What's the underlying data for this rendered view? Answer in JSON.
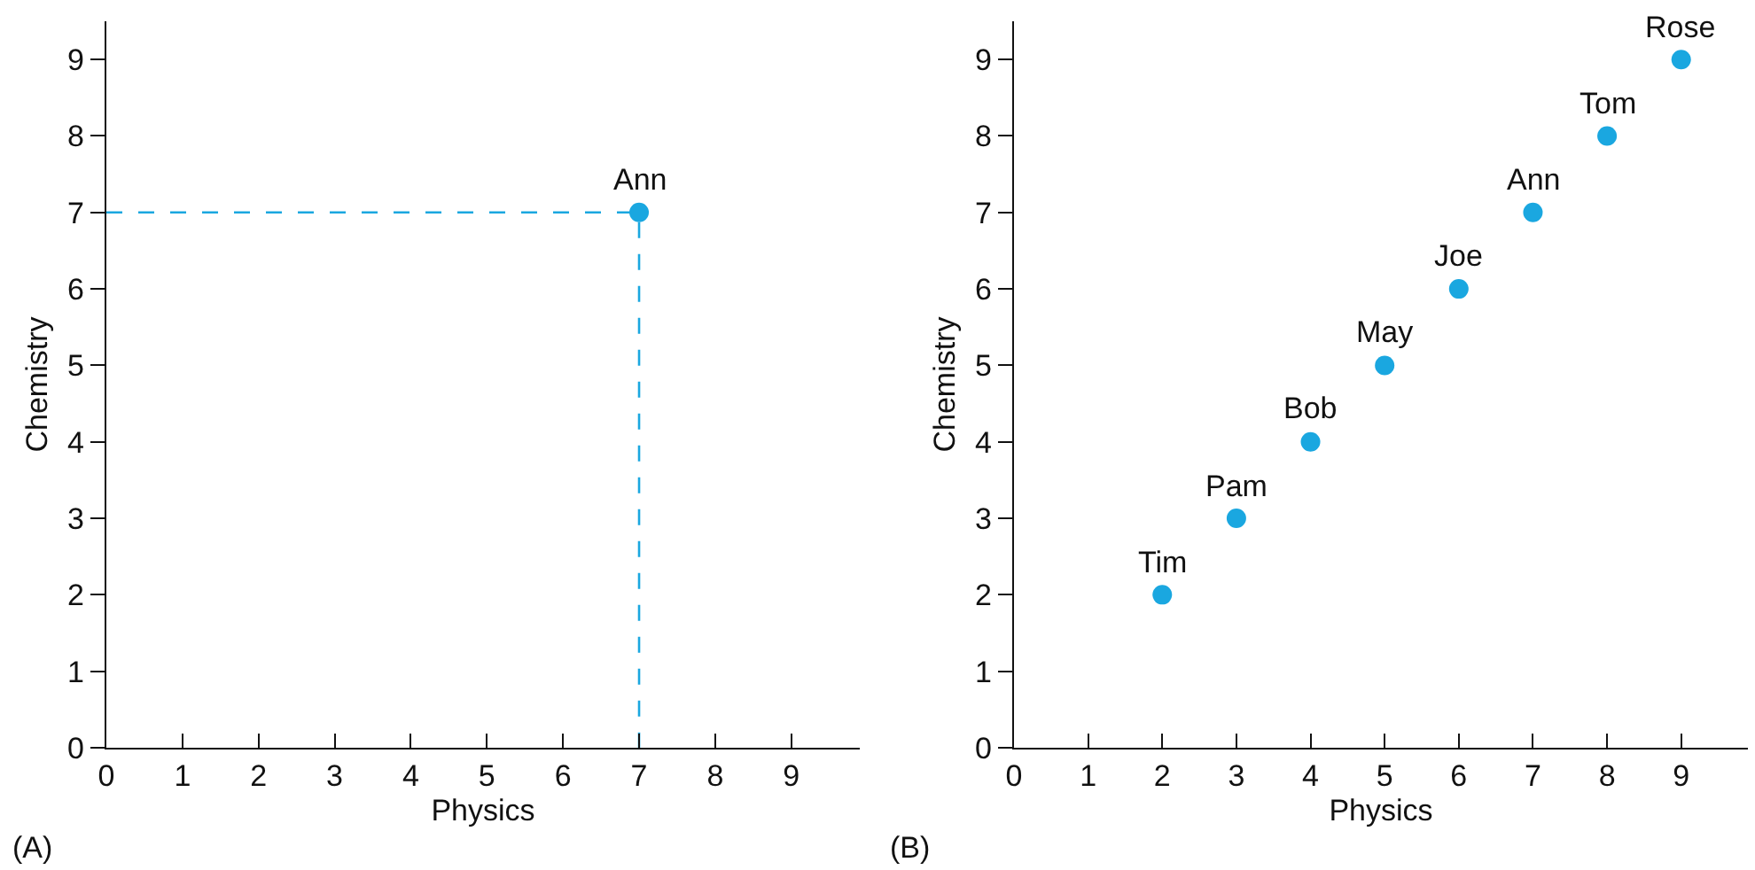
{
  "chart_data": [
    {
      "type": "scatter",
      "xlabel": "Physics",
      "ylabel": "Chemistry",
      "xlim": [
        0,
        9.9
      ],
      "ylim": [
        0,
        9.5
      ],
      "xticks": [
        0,
        1,
        2,
        3,
        4,
        5,
        6,
        7,
        8,
        9
      ],
      "yticks": [
        0,
        1,
        2,
        3,
        4,
        5,
        6,
        7,
        8,
        9
      ],
      "grid": false,
      "marker": "circle",
      "series": [
        {
          "type": "line",
          "color": "#1aa7e0",
          "line_style": "dashed",
          "marker": "none",
          "x": [
            0,
            7,
            7
          ],
          "values": [
            7,
            7,
            0
          ]
        },
        {
          "type": "scatter",
          "color": "#1aa7e0",
          "x": [
            7
          ],
          "values": [
            7
          ]
        }
      ],
      "annotations": [
        {
          "text": "Ann",
          "x": 7,
          "y": 7
        },
        "(A)"
      ]
    },
    {
      "type": "scatter",
      "xlabel": "Physics",
      "ylabel": "Chemistry",
      "xlim": [
        0,
        9.9
      ],
      "ylim": [
        0,
        9.5
      ],
      "xticks": [
        0,
        1,
        2,
        3,
        4,
        5,
        6,
        7,
        8,
        9
      ],
      "yticks": [
        0,
        1,
        2,
        3,
        4,
        5,
        6,
        7,
        8,
        9
      ],
      "grid": false,
      "marker": "circle",
      "series": [
        {
          "type": "scatter",
          "color": "#1aa7e0",
          "x": [
            2,
            3,
            4,
            5,
            6,
            7,
            8,
            9
          ],
          "values": [
            2,
            3,
            4,
            5,
            6,
            7,
            8,
            9
          ]
        }
      ],
      "annotations": [
        {
          "text": "Tim",
          "x": 2,
          "y": 2
        },
        {
          "text": "Pam",
          "x": 3,
          "y": 3
        },
        {
          "text": "Bob",
          "x": 4,
          "y": 4
        },
        {
          "text": "May",
          "x": 5,
          "y": 5
        },
        {
          "text": "Joe",
          "x": 6,
          "y": 6
        },
        {
          "text": "Ann",
          "x": 7,
          "y": 7
        },
        {
          "text": "Tom",
          "x": 8,
          "y": 8
        },
        {
          "text": "Rose",
          "x": 9,
          "y": 9
        },
        "(B)"
      ]
    }
  ]
}
